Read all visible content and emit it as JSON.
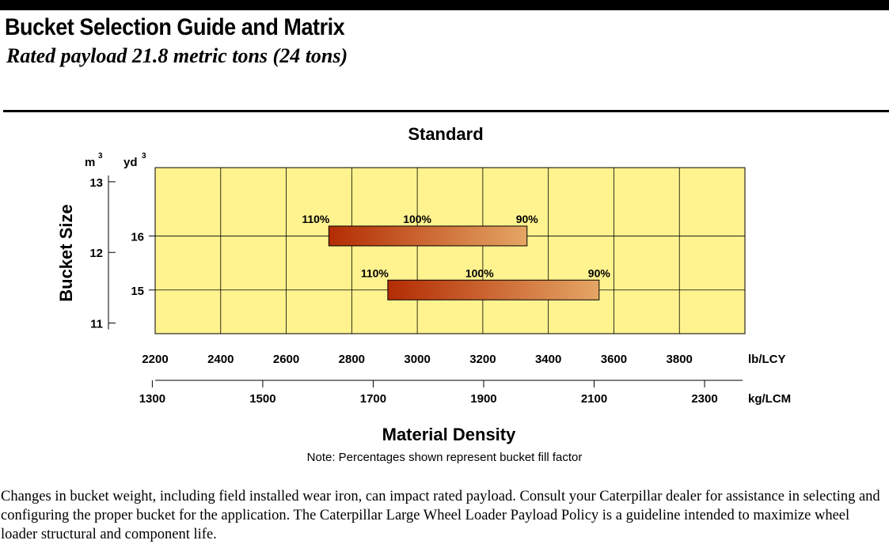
{
  "header": {
    "title": "Bucket Selection Guide and Matrix",
    "subtitle": "Rated payload 21.8 metric tons (24 tons)"
  },
  "chart_data": {
    "type": "bar",
    "orientation": "horizontal-range",
    "title": "Standard",
    "xlabel": "Material Density",
    "ylabel": "Bucket Size",
    "grid": true,
    "plot_background": "#fff38f",
    "x_axis_primary": {
      "unit": "lb/LCY",
      "range": [
        2200,
        4000
      ],
      "ticks": [
        2200,
        2400,
        2600,
        2800,
        3000,
        3200,
        3400,
        3600,
        3800
      ]
    },
    "x_axis_secondary": {
      "unit": "kg/LCM",
      "ticks": [
        1300,
        1500,
        1700,
        1900,
        2100,
        2300
      ]
    },
    "y_axis_m3": {
      "unit": "m",
      "superscript": "3",
      "ticks": [
        13,
        12,
        11
      ]
    },
    "y_axis_yd3": {
      "unit": "yd",
      "superscript": "3",
      "ticks": [
        16,
        15
      ]
    },
    "series": [
      {
        "bucket_m3": 12.2,
        "bucket_yd3": 16,
        "start_lb_lcy": 2730,
        "end_lb_lcy": 3335,
        "markers": [
          {
            "label": "110%",
            "lb_lcy": 2730
          },
          {
            "label": "100%",
            "lb_lcy": 3000
          },
          {
            "label": "90%",
            "lb_lcy": 3335
          }
        ]
      },
      {
        "bucket_m3": 11.5,
        "bucket_yd3": 15,
        "start_lb_lcy": 2910,
        "end_lb_lcy": 3555,
        "markers": [
          {
            "label": "110%",
            "lb_lcy": 2910
          },
          {
            "label": "100%",
            "lb_lcy": 3190
          },
          {
            "label": "90%",
            "lb_lcy": 3555
          }
        ]
      }
    ],
    "gradient_colors": [
      "#b32c04",
      "#e5a665"
    ]
  },
  "note": "Note: Percentages shown represent bucket fill factor",
  "footer_text": "Changes in bucket weight, including field installed wear iron, can impact rated payload. Consult your Caterpillar dealer for assistance in selecting and configuring the proper bucket for the application. The Caterpillar Large Wheel Loader Payload Policy is a guideline intended to maximize wheel loader structural and component life."
}
